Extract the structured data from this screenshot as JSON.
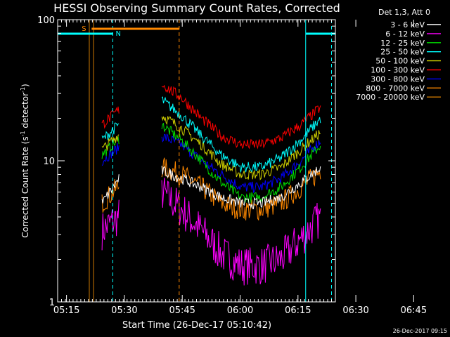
{
  "chart_data": {
    "type": "line",
    "title": "HESSI Observing Summary Count Rates, Corrected",
    "xlabel": "Start Time (26-Dec-17 05:10:42)",
    "ylabel_main": "Corrected Count Rate (s",
    "ylabel_sup1": "-1",
    "ylabel_mid": " detector",
    "ylabel_sup2": "-1",
    "ylabel_end": ")",
    "timestamp": "26-Dec-2017 09:15",
    "y_scale": "log",
    "ylim": [
      1,
      100
    ],
    "xlim_minutes": [
      2,
      74
    ],
    "x_ticks": [
      {
        "label": "05:15",
        "minutes": 4.3
      },
      {
        "label": "05:30",
        "minutes": 19.3
      },
      {
        "label": "05:45",
        "minutes": 34.3
      },
      {
        "label": "06:00",
        "minutes": 49.3
      },
      {
        "label": "06:15",
        "minutes": 64.3
      },
      {
        "label": "06:30",
        "minutes": 79.3
      },
      {
        "label": "06:45",
        "minutes": 94.3
      }
    ],
    "y_ticks": [
      {
        "label": "100",
        "value": 100
      },
      {
        "label": "10",
        "value": 10
      },
      {
        "label": "1",
        "value": 1
      }
    ],
    "legend_header": "Det 1,3, Att 0",
    "legend_position": "right",
    "series": [
      {
        "name": "3 - 6 keV",
        "color": "#ffffff",
        "values": [
          5,
          8,
          9.5,
          8.5,
          7.5,
          6.5,
          5.5,
          5,
          5,
          5.5,
          7,
          9
        ]
      },
      {
        "name": "6 - 12 keV",
        "color": "#ff00ff",
        "values": [
          3.2,
          4.2,
          7.5,
          6,
          4.5,
          3.2,
          2.2,
          1.8,
          1.8,
          2,
          2.8,
          4
        ]
      },
      {
        "name": "12 - 25 keV",
        "color": "#00dd00",
        "values": [
          11,
          15,
          20,
          18,
          14,
          10,
          7,
          5.5,
          5.5,
          6.5,
          9,
          13
        ]
      },
      {
        "name": "25 - 50 keV",
        "color": "#00ffff",
        "values": [
          14,
          19,
          30,
          27,
          21,
          15,
          11,
          9,
          9,
          10.5,
          14,
          20
        ]
      },
      {
        "name": "50 - 100 keV",
        "color": "#cccc00",
        "values": [
          12,
          16,
          23,
          21,
          17,
          13,
          9.5,
          8,
          8,
          9,
          12,
          16
        ]
      },
      {
        "name": "100 - 300 keV",
        "color": "#ff0000",
        "values": [
          18,
          24,
          38,
          35,
          28,
          20,
          15,
          13,
          13,
          14.5,
          18,
          24
        ]
      },
      {
        "name": "300 - 800 keV",
        "color": "#0000ff",
        "values": [
          10,
          13,
          17,
          15,
          13,
          10,
          8,
          6.5,
          6.5,
          7.5,
          10,
          14
        ]
      },
      {
        "name": "800 - 7000 keV",
        "color": "#ff8800",
        "values": [
          5,
          7,
          10,
          9,
          8,
          6.5,
          5,
          4.5,
          4.5,
          5,
          6.5,
          8.5
        ]
      },
      {
        "name": "7000 - 20000 keV",
        "color": "#cc7700",
        "values": [
          1,
          1,
          1,
          1,
          1,
          1,
          1,
          1,
          1,
          1,
          1,
          1
        ]
      }
    ],
    "segments_minutes": [
      {
        "from": 13.5,
        "to": 18.0,
        "idx": [
          0,
          1
        ]
      },
      {
        "from": 29.0,
        "to": 70.2,
        "idx": [
          2,
          3,
          4,
          5,
          6,
          7,
          8,
          9,
          10,
          11
        ]
      }
    ],
    "annotations": {
      "saa_label": "S",
      "night_label": "N",
      "saa_bar_minutes": [
        10.8,
        33.5
      ],
      "night_bar_minutes": [
        [
          2.0,
          16.3
        ],
        [
          66.3,
          74.0
        ]
      ],
      "vlines_solid_minutes": [
        10.2,
        11.3,
        66.3
      ],
      "vlines_dashed_minutes": [
        16.3,
        33.5,
        73.0
      ],
      "saa_color": "#ff8800",
      "night_color": "#00ffff",
      "orange_line_color": "#cc7700"
    }
  }
}
